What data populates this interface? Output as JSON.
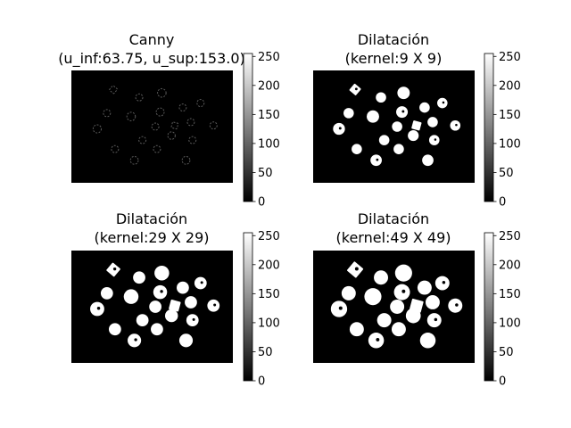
{
  "figure": {
    "panels": [
      {
        "title_line1": "Canny",
        "title_line2": "(u_inf:63.75, u_sup:153.0)",
        "image": {
          "style": "edges",
          "blob_scale": 0.55
        }
      },
      {
        "title_line1": "Dilatación",
        "title_line2": "(kernel:9 X 9)",
        "image": {
          "style": "dilated",
          "blob_scale": 0.8
        }
      },
      {
        "title_line1": "Dilatación",
        "title_line2": "(kernel:29 X 29)",
        "image": {
          "style": "dilated",
          "blob_scale": 0.95
        }
      },
      {
        "title_line1": "Dilatación",
        "title_line2": "(kernel:49 X 49)",
        "image": {
          "style": "dilated",
          "blob_scale": 1.1
        }
      }
    ]
  },
  "chart_data": {
    "type": "heatmap",
    "colormap": "gray",
    "colorbar": {
      "min": 0,
      "max": 255,
      "ticks": [
        0,
        50,
        100,
        150,
        200,
        250
      ]
    },
    "panels": [
      {
        "title": "Canny\n(u_inf:63.75, u_sup:153.0)"
      },
      {
        "title": "Dilatación\n(kernel:9 X 9)"
      },
      {
        "title": "Dilatación\n(kernel:29 X 29)"
      },
      {
        "title": "Dilatación\n(kernel:49 X 49)"
      }
    ],
    "colors": {
      "background": "#000000",
      "foreground": "#ffffff"
    }
  }
}
